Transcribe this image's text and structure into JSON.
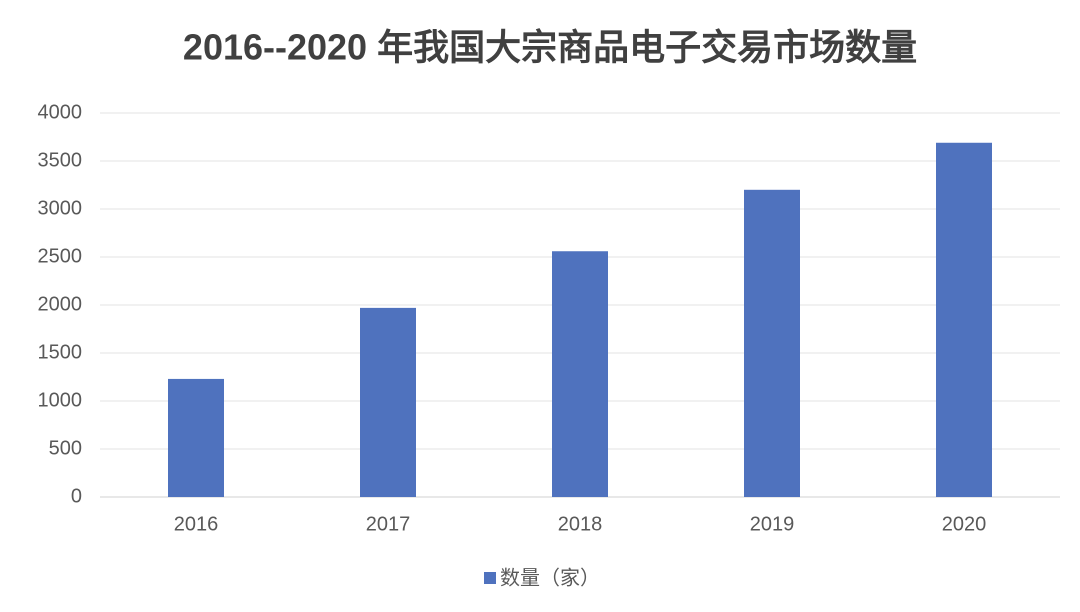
{
  "chart_data": {
    "type": "bar",
    "title": "2016--2020 年我国大宗商品电子交易市场数量",
    "categories": [
      "2016",
      "2017",
      "2018",
      "2019",
      "2020"
    ],
    "series": [
      {
        "name": "数量（家）",
        "color": "#4f72be",
        "values": [
          1230,
          1970,
          2560,
          3200,
          3690
        ]
      }
    ],
    "ylim": [
      0,
      4000
    ],
    "yticks": [
      0,
      500,
      1000,
      1500,
      2000,
      2500,
      3000,
      3500,
      4000
    ],
    "grid": true,
    "legend": "bottom"
  }
}
